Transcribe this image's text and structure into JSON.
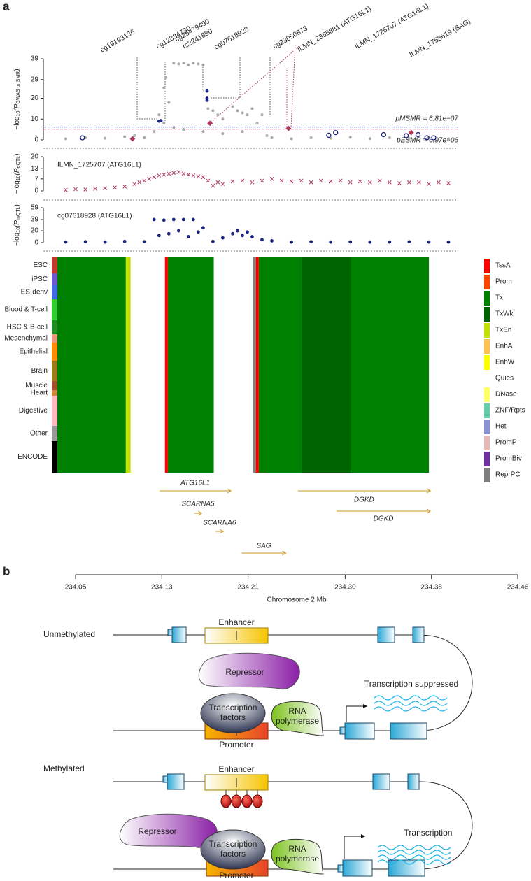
{
  "panel_labels": [
    "a",
    "b"
  ],
  "chart_data": [
    {
      "type": "scatter",
      "y_label": [
        "−log",
        "10",
        "(P",
        "GWAS or SMR",
        ")"
      ],
      "xlim": [
        234.05,
        234.46
      ],
      "ylim": [
        0,
        39
      ],
      "yticks": [
        0,
        10,
        20,
        29,
        39
      ],
      "series": [
        {
          "marker": "circle",
          "color": "#a9a9a9",
          "x": [
            234.06,
            234.08,
            234.1,
            234.12,
            234.13,
            234.14,
            234.15,
            234.155,
            234.16,
            234.162,
            234.165,
            234.17,
            234.175,
            234.18,
            234.185,
            234.19,
            234.195,
            234.2,
            234.205,
            234.21,
            234.215,
            234.22,
            234.23,
            234.235,
            234.24,
            234.245,
            234.25,
            234.255,
            234.26,
            234.265,
            234.27,
            234.29,
            234.31,
            234.33,
            234.35,
            234.37,
            234.39,
            234.41,
            234.43,
            234.45,
            234.16,
            234.17,
            234.18,
            234.2,
            234.22,
            234.24
          ],
          "y": [
            0.5,
            1,
            0.8,
            1.5,
            2,
            1,
            4,
            12,
            25,
            30,
            18,
            37,
            36.5,
            37,
            36,
            37,
            36.5,
            36,
            15,
            14,
            12,
            10,
            16,
            14,
            13,
            12,
            15,
            8,
            12,
            2,
            1,
            0.5,
            1,
            0.8,
            1.2,
            0.6,
            1,
            0.7,
            1.1,
            0.5,
            8,
            6,
            5,
            4,
            3,
            4
          ]
        },
        {
          "marker": "circle",
          "color": "#1a237e",
          "x": [
            234.155,
            234.157,
            234.204,
            234.204,
            234.204
          ],
          "y": [
            9,
            9.2,
            23.5,
            20,
            19
          ]
        },
        {
          "marker": "open-circle",
          "color": "#1a237e",
          "x": [
            234.077,
            234.328,
            234.335,
            234.384,
            234.407,
            234.419,
            234.428,
            234.435
          ],
          "y": [
            1,
            2.2,
            3.5,
            2.5,
            2,
            2.5,
            1,
            1
          ]
        },
        {
          "marker": "diamond",
          "color": "#b03a5b",
          "x": [
            234.128,
            234.207,
            234.287,
            234.412
          ],
          "y": [
            0.5,
            8,
            5.5,
            3.5
          ]
        }
      ],
      "thresholds": [
        {
          "label": "pMSMR = 6.81e−07",
          "y": 6.17,
          "color": "#1a237e"
        },
        {
          "label": "pESMR = 6.97e−06",
          "y": 5.16,
          "color": "#b03a5b"
        }
      ],
      "annotations": [
        {
          "text": "cg19193136",
          "color": "#1a237e"
        },
        {
          "text": "cg12834730",
          "color": "#1a237e"
        },
        {
          "text": "cg25479499",
          "color": "#1a237e"
        },
        {
          "text": "rs2241880",
          "color": "#d98c2b"
        },
        {
          "text": "cg07618928",
          "color": "#1a237e"
        },
        {
          "text": "cg23050873",
          "color": "#1a237e"
        },
        {
          "text": "ILMN_2365881 (ATG16L1)",
          "color": "#b03a5b"
        },
        {
          "text": "ILMN_1725707 (ATG16L1)",
          "color": "#b03a5b"
        },
        {
          "text": "ILMN_1758619 (SAG)",
          "color": "#b03a5b"
        }
      ]
    },
    {
      "type": "scatter",
      "y_label": [
        "−log",
        "10",
        "(P",
        "eQTL",
        ")"
      ],
      "label": "ILMN_1725707 (ATG16L1)",
      "label_color": "#b03ac8",
      "xlim": [
        234.05,
        234.46
      ],
      "ylim": [
        0,
        20
      ],
      "yticks": [
        0,
        7,
        13,
        20
      ],
      "series": [
        {
          "marker": "x",
          "color": "#b03a5b",
          "x": [
            234.06,
            234.07,
            234.08,
            234.09,
            234.1,
            234.11,
            234.12,
            234.13,
            234.135,
            234.14,
            234.145,
            234.15,
            234.155,
            234.16,
            234.165,
            234.17,
            234.175,
            234.18,
            234.185,
            234.19,
            234.195,
            234.2,
            234.205,
            234.21,
            234.215,
            234.22,
            234.23,
            234.24,
            234.25,
            234.26,
            234.27,
            234.28,
            234.29,
            234.3,
            234.31,
            234.32,
            234.33,
            234.34,
            234.35,
            234.36,
            234.37,
            234.38,
            234.39,
            234.4,
            234.41,
            234.42,
            234.43,
            234.44,
            234.45
          ],
          "y": [
            0.5,
            1,
            0.8,
            1.2,
            1.5,
            2,
            2.5,
            4,
            5,
            6,
            7,
            8,
            9,
            9.5,
            10,
            10.5,
            11,
            10,
            9.5,
            9,
            8.5,
            8,
            6,
            3,
            5,
            4,
            5.5,
            6,
            5,
            6,
            7,
            6,
            5.5,
            6,
            5,
            6,
            5.5,
            6,
            5,
            5.5,
            5,
            6,
            5,
            4.5,
            5,
            5,
            4,
            5,
            4.5
          ]
        }
      ]
    },
    {
      "type": "scatter",
      "y_label": [
        "−log",
        "10",
        "(P",
        "mQTL",
        ")"
      ],
      "label": "cg07618928 (ATG16L1)",
      "label_color": "#b03ac8",
      "xlim": [
        234.05,
        234.46
      ],
      "ylim": [
        0,
        59
      ],
      "yticks": [
        0,
        20,
        39,
        59
      ],
      "series": [
        {
          "marker": "circle",
          "color": "#1a237e",
          "x": [
            234.06,
            234.08,
            234.1,
            234.12,
            234.14,
            234.15,
            234.155,
            234.16,
            234.165,
            234.17,
            234.175,
            234.18,
            234.185,
            234.19,
            234.195,
            234.2,
            234.21,
            234.22,
            234.23,
            234.235,
            234.24,
            234.245,
            234.25,
            234.26,
            234.27,
            234.29,
            234.31,
            234.33,
            234.35,
            234.37,
            234.39,
            234.41,
            234.43,
            234.45
          ],
          "y": [
            1,
            1.5,
            1,
            2,
            1.5,
            39,
            12,
            38,
            15,
            39,
            20,
            39,
            10,
            39,
            18,
            25,
            2,
            8,
            15,
            20,
            12,
            18,
            10,
            5,
            3,
            1,
            1.5,
            1,
            1.2,
            1,
            1,
            1.5,
            1,
            1
          ]
        }
      ]
    },
    {
      "type": "heatmap",
      "xlim": [
        234.05,
        234.46
      ],
      "groups": [
        {
          "name": "ESC",
          "color": "#c0392b"
        },
        {
          "name": "iPSC",
          "color": "#6a5acd"
        },
        {
          "name": "ES-deriv",
          "color": "#4169e1"
        },
        {
          "name": "Blood & T-cell",
          "color": "#32cd32"
        },
        {
          "name": "HSC & B-cell",
          "color": "#228b22"
        },
        {
          "name": "Mesenchymal",
          "color": "#e9967a"
        },
        {
          "name": "Epithelial",
          "color": "#ff8c00"
        },
        {
          "name": "Brain",
          "color": "#9c7a17"
        },
        {
          "name": "Muscle",
          "color": "#a0522d"
        },
        {
          "name": "Heart",
          "color": "#cd853f"
        },
        {
          "name": "Digestive",
          "color": "#ffb6c1"
        },
        {
          "name": "Other",
          "color": "#999999"
        },
        {
          "name": "ENCODE",
          "color": "#000000"
        }
      ],
      "legend": [
        {
          "name": "TssA",
          "color": "#ff0000"
        },
        {
          "name": "Prom",
          "color": "#ff4500"
        },
        {
          "name": "Tx",
          "color": "#008000"
        },
        {
          "name": "TxWk",
          "color": "#006400"
        },
        {
          "name": "TxEn",
          "color": "#c2e105"
        },
        {
          "name": "EnhA",
          "color": "#ffc34d"
        },
        {
          "name": "EnhW",
          "color": "#ffff00"
        },
        {
          "name": "Quies",
          "color": "#ffffff"
        },
        {
          "name": "DNase",
          "color": "#ffff66"
        },
        {
          "name": "ZNF/Rpts",
          "color": "#66cdaa"
        },
        {
          "name": "Het",
          "color": "#8a91d0"
        },
        {
          "name": "PromP",
          "color": "#e6b8b7"
        },
        {
          "name": "PromBiv",
          "color": "#7030a0"
        },
        {
          "name": "ReprPC",
          "color": "#808080"
        }
      ],
      "blocks": [
        {
          "start": 234.05,
          "end": 234.12,
          "state": "Tx"
        },
        {
          "start": 234.12,
          "end": 234.125,
          "state": "TxEn"
        },
        {
          "start": 234.125,
          "end": 234.16,
          "state": "Quies"
        },
        {
          "start": 234.16,
          "end": 234.163,
          "state": "TssA"
        },
        {
          "start": 234.163,
          "end": 234.21,
          "state": "Tx"
        },
        {
          "start": 234.21,
          "end": 234.25,
          "state": "Quies"
        },
        {
          "start": 234.25,
          "end": 234.253,
          "state": "ReprPC"
        },
        {
          "start": 234.253,
          "end": 234.256,
          "state": "TssA"
        },
        {
          "start": 234.256,
          "end": 234.3,
          "state": "Tx"
        },
        {
          "start": 234.3,
          "end": 234.35,
          "state": "TxWk"
        },
        {
          "start": 234.35,
          "end": 234.43,
          "state": "Tx"
        }
      ]
    },
    {
      "type": "genes",
      "xlim": [
        234.05,
        234.46
      ],
      "xticks": [
        234.05,
        234.13,
        234.21,
        {
          "value": 234.3,
          "label": "234.30"
        },
        234.38,
        234.46
      ],
      "x_label": "Chromosome 2 Mb",
      "color": "#c8961e",
      "genes": [
        {
          "name": "ATG16L1",
          "start": 234.128,
          "end": 234.194
        },
        {
          "name": "SCARNA5",
          "start": 234.16,
          "end": 234.167
        },
        {
          "name": "SCARNA6",
          "start": 234.18,
          "end": 234.187
        },
        {
          "name": "SAG",
          "start": 234.204,
          "end": 234.245
        },
        {
          "name": "DGKD",
          "start": 234.256,
          "end": 234.379
        },
        {
          "name": "DGKD",
          "start": 234.292,
          "end": 234.379
        }
      ]
    }
  ],
  "diagram": {
    "unmethylated": {
      "title": "Unmethylated",
      "enhancer": "Enhancer",
      "repressor": "Repressor",
      "tf": [
        "Transcription",
        "factors"
      ],
      "polymerase": [
        "RNA",
        "polymerase"
      ],
      "promoter": "Promoter",
      "outcome": "Transcription suppressed"
    },
    "methylated": {
      "title": "Methylated",
      "enhancer": "Enhancer",
      "repressor": "Repressor",
      "tf": [
        "Transcription",
        "factors"
      ],
      "polymerase": [
        "RNA",
        "polymerase"
      ],
      "promoter": "Promoter",
      "outcome": "Transcription"
    }
  }
}
